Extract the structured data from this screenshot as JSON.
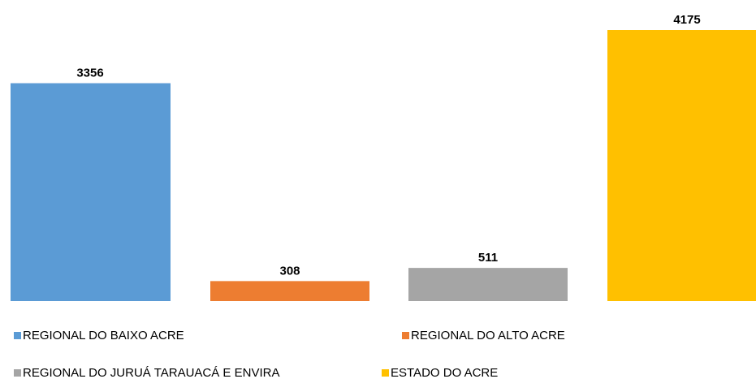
{
  "chart_data": {
    "type": "bar",
    "series": [
      {
        "name": "REGIONAL DO BAIXO ACRE",
        "color": "#5b9bd5",
        "values": [
          3356
        ]
      },
      {
        "name": "REGIONAL DO ALTO ACRE",
        "color": "#ed7d31",
        "values": [
          308
        ]
      },
      {
        "name": "REGIONAL DO JURUÁ TARAUACÁ E ENVIRA",
        "color": "#a5a5a5",
        "values": [
          511
        ]
      },
      {
        "name": "ESTADO DO ACRE",
        "color": "#ffc000",
        "values": [
          4175
        ]
      }
    ]
  }
}
